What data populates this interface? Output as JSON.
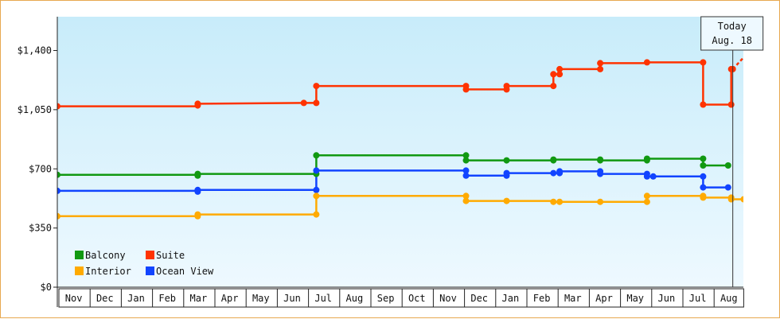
{
  "chart_data": {
    "type": "line",
    "step": true,
    "ylim": [
      0,
      1600
    ],
    "y_ticks": [
      {
        "value": 0,
        "label": "$0"
      },
      {
        "value": 350,
        "label": "$350"
      },
      {
        "value": 700,
        "label": "$700"
      },
      {
        "value": 1050,
        "label": "$1,050"
      },
      {
        "value": 1400,
        "label": "$1,400"
      }
    ],
    "x_months": [
      "Nov",
      "Dec",
      "Jan",
      "Feb",
      "Mar",
      "Apr",
      "May",
      "Jun",
      "Jul",
      "Aug",
      "Sep",
      "Oct",
      "Nov",
      "Dec",
      "Jan",
      "Feb",
      "Mar",
      "Apr",
      "May",
      "Jun",
      "Jul",
      "Aug"
    ],
    "xlim": [
      0,
      22.05
    ],
    "today": {
      "x": 21.65,
      "label_line1": "Today",
      "label_line2": "Aug. 18"
    },
    "legend": [
      {
        "name": "Balcony",
        "color": "#119911"
      },
      {
        "name": "Suite",
        "color": "#ff3300"
      },
      {
        "name": "Interior",
        "color": "#ffaa00"
      },
      {
        "name": "Ocean View",
        "color": "#1144ff"
      }
    ],
    "grid": false,
    "legend_position": "bottom-left",
    "background": {
      "from": "#c8ecfa",
      "to": "#eef9ff"
    },
    "series": [
      {
        "name": "Suite",
        "color": "#ff3300",
        "points": [
          [
            0,
            1070
          ],
          [
            4.5,
            1070
          ],
          [
            4.5,
            1085
          ],
          [
            7.9,
            1090
          ],
          [
            8.3,
            1090
          ],
          [
            8.3,
            1190
          ],
          [
            13.1,
            1190
          ],
          [
            13.1,
            1170
          ],
          [
            14.4,
            1170
          ],
          [
            14.4,
            1190
          ],
          [
            15.9,
            1190
          ],
          [
            15.9,
            1260
          ],
          [
            16.1,
            1260
          ],
          [
            16.1,
            1290
          ],
          [
            17.4,
            1290
          ],
          [
            17.4,
            1325
          ],
          [
            18.9,
            1325
          ],
          [
            18.9,
            1330
          ],
          [
            20.7,
            1330
          ],
          [
            20.7,
            1080
          ],
          [
            21.6,
            1080
          ],
          [
            21.6,
            1290
          ],
          [
            21.65,
            1290
          ],
          [
            21.65,
            1290
          ]
        ],
        "forecast": [
          [
            21.65,
            1290
          ],
          [
            22.05,
            1370
          ]
        ]
      },
      {
        "name": "Balcony",
        "color": "#119911",
        "points": [
          [
            0,
            665
          ],
          [
            4.5,
            665
          ],
          [
            4.5,
            670
          ],
          [
            8.3,
            670
          ],
          [
            8.3,
            780
          ],
          [
            13.1,
            780
          ],
          [
            13.1,
            750
          ],
          [
            14.4,
            750
          ],
          [
            15.9,
            750
          ],
          [
            15.9,
            755
          ],
          [
            17.4,
            755
          ],
          [
            17.4,
            750
          ],
          [
            18.9,
            750
          ],
          [
            18.9,
            760
          ],
          [
            20.7,
            760
          ],
          [
            20.7,
            720
          ],
          [
            21.5,
            720
          ]
        ]
      },
      {
        "name": "Ocean View",
        "color": "#1144ff",
        "points": [
          [
            0,
            570
          ],
          [
            4.5,
            570
          ],
          [
            4.5,
            575
          ],
          [
            8.3,
            575
          ],
          [
            8.3,
            690
          ],
          [
            13.1,
            690
          ],
          [
            13.1,
            660
          ],
          [
            14.4,
            660
          ],
          [
            14.4,
            675
          ],
          [
            15.9,
            675
          ],
          [
            16.1,
            675
          ],
          [
            16.1,
            685
          ],
          [
            17.4,
            685
          ],
          [
            17.4,
            670
          ],
          [
            18.9,
            670
          ],
          [
            18.9,
            655
          ],
          [
            20.7,
            655
          ],
          [
            20.7,
            590
          ],
          [
            21.5,
            590
          ]
        ]
      },
      {
        "name": "Interior",
        "color": "#ffaa00",
        "points": [
          [
            0,
            420
          ],
          [
            4.5,
            420
          ],
          [
            4.5,
            430
          ],
          [
            8.3,
            430
          ],
          [
            8.3,
            540
          ],
          [
            13.1,
            540
          ],
          [
            13.1,
            510
          ],
          [
            14.4,
            510
          ],
          [
            15.9,
            510
          ],
          [
            15.9,
            505
          ],
          [
            16.1,
            505
          ],
          [
            17.4,
            505
          ],
          [
            18.9,
            505
          ],
          [
            18.9,
            540
          ],
          [
            20.7,
            540
          ],
          [
            20.7,
            530
          ],
          [
            21.6,
            530
          ],
          [
            21.6,
            520
          ],
          [
            22.0,
            520
          ]
        ]
      }
    ],
    "markers": {
      "Suite": [
        [
          0,
          1070
        ],
        [
          4.5,
          1085
        ],
        [
          4.5,
          1075
        ],
        [
          7.9,
          1090
        ],
        [
          8.3,
          1090
        ],
        [
          8.3,
          1190
        ],
        [
          13.1,
          1190
        ],
        [
          13.1,
          1170
        ],
        [
          14.4,
          1170
        ],
        [
          14.4,
          1190
        ],
        [
          15.9,
          1190
        ],
        [
          15.9,
          1260
        ],
        [
          16.1,
          1260
        ],
        [
          16.1,
          1290
        ],
        [
          17.4,
          1290
        ],
        [
          17.4,
          1325
        ],
        [
          18.9,
          1330
        ],
        [
          20.7,
          1330
        ],
        [
          20.7,
          1080
        ],
        [
          21.6,
          1080
        ],
        [
          21.6,
          1290
        ],
        [
          21.65,
          1290
        ]
      ],
      "Balcony": [
        [
          0,
          665
        ],
        [
          4.5,
          670
        ],
        [
          4.5,
          660
        ],
        [
          8.3,
          670
        ],
        [
          8.3,
          780
        ],
        [
          13.1,
          780
        ],
        [
          13.1,
          750
        ],
        [
          14.4,
          750
        ],
        [
          15.9,
          750
        ],
        [
          15.9,
          755
        ],
        [
          17.4,
          755
        ],
        [
          17.4,
          750
        ],
        [
          18.9,
          750
        ],
        [
          18.9,
          760
        ],
        [
          20.7,
          760
        ],
        [
          20.7,
          720
        ],
        [
          21.5,
          720
        ]
      ],
      "Ocean View": [
        [
          0,
          570
        ],
        [
          4.5,
          575
        ],
        [
          4.5,
          565
        ],
        [
          8.3,
          575
        ],
        [
          8.3,
          690
        ],
        [
          13.1,
          690
        ],
        [
          13.1,
          660
        ],
        [
          14.4,
          660
        ],
        [
          14.4,
          675
        ],
        [
          15.9,
          675
        ],
        [
          16.1,
          685
        ],
        [
          16.1,
          675
        ],
        [
          17.4,
          685
        ],
        [
          17.4,
          670
        ],
        [
          18.9,
          670
        ],
        [
          18.9,
          655
        ],
        [
          19.1,
          655
        ],
        [
          20.7,
          655
        ],
        [
          20.7,
          590
        ],
        [
          21.5,
          590
        ]
      ],
      "Interior": [
        [
          0,
          420
        ],
        [
          4.5,
          430
        ],
        [
          4.5,
          420
        ],
        [
          8.3,
          430
        ],
        [
          8.3,
          540
        ],
        [
          13.1,
          540
        ],
        [
          13.1,
          510
        ],
        [
          14.4,
          510
        ],
        [
          15.9,
          505
        ],
        [
          16.1,
          505
        ],
        [
          17.4,
          505
        ],
        [
          18.9,
          505
        ],
        [
          18.9,
          540
        ],
        [
          20.7,
          540
        ],
        [
          20.7,
          530
        ],
        [
          21.6,
          530
        ],
        [
          21.6,
          520
        ],
        [
          22.0,
          520
        ]
      ]
    }
  }
}
